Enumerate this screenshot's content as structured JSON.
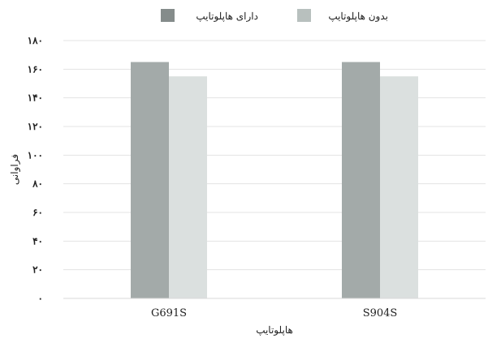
{
  "chart_data": {
    "type": "bar",
    "categories": [
      "G691S",
      "S904S"
    ],
    "series": [
      {
        "name": "دارای هاپلوتایپ",
        "values": [
          165,
          165
        ],
        "color": "#a3aaa9"
      },
      {
        "name": "بدون هاپلوتایپ",
        "values": [
          155,
          155
        ],
        "color": "#dbe0df"
      }
    ],
    "title": "",
    "xlabel": "هاپلوتایپ",
    "ylabel": "فراوانی",
    "ylim": [
      0,
      180
    ],
    "yticks": [
      {
        "value": 0,
        "label": "۰"
      },
      {
        "value": 20,
        "label": "۲۰"
      },
      {
        "value": 40,
        "label": "۴۰"
      },
      {
        "value": 60,
        "label": "۶۰"
      },
      {
        "value": 80,
        "label": "۸۰"
      },
      {
        "value": 100,
        "label": "۱۰۰"
      },
      {
        "value": 120,
        "label": "۱۲۰"
      },
      {
        "value": 140,
        "label": "۱۴۰"
      },
      {
        "value": 160,
        "label": "۱۶۰"
      },
      {
        "value": 180,
        "label": "۱۸۰"
      }
    ],
    "grid": true,
    "legend_position": "top-center",
    "legend_marker_colors": [
      "#858c8b",
      "#b8c0be"
    ]
  }
}
